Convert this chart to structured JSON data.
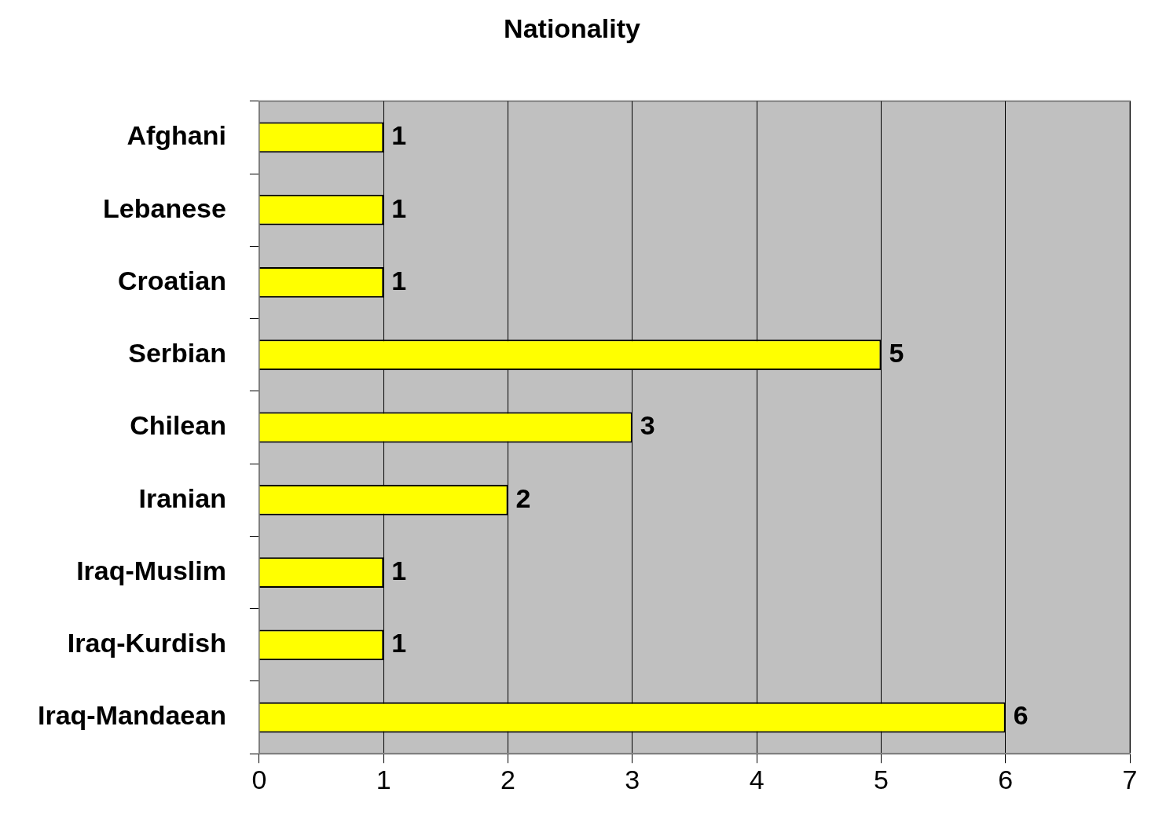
{
  "chart_data": {
    "type": "bar",
    "orientation": "horizontal",
    "title": "Nationality",
    "categories": [
      "Afghani",
      "Lebanese",
      "Croatian",
      "Serbian",
      "Chilean",
      "Iranian",
      "Iraq-Muslim",
      "Iraq-Kurdish",
      "Iraq-Mandaean"
    ],
    "values": [
      1,
      1,
      1,
      5,
      3,
      2,
      1,
      1,
      6
    ],
    "color": "#ffff00",
    "xlim": [
      0,
      7
    ],
    "xticks": [
      0,
      1,
      2,
      3,
      4,
      5,
      6,
      7
    ],
    "grid": "x",
    "data_labels": true,
    "legend": false
  }
}
